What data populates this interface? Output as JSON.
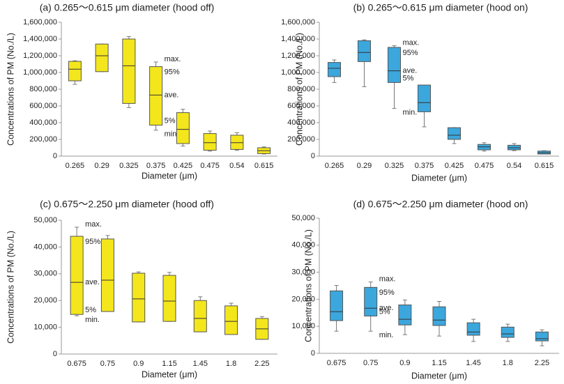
{
  "chart_data": [
    {
      "type": "box",
      "title": "(a) 0.265～0.615 μm diameter (hood off)",
      "x_label": "Diameter (μm)",
      "y_label": "Concentrations of PM (No./L)",
      "color": "#f4e61c",
      "categories": [
        "0.265",
        "0.29",
        "0.325",
        "0.375",
        "0.425",
        "0.475",
        "0.54",
        "0.615"
      ],
      "max": [
        1140000,
        1340000,
        1430000,
        1125000,
        560000,
        300000,
        280000,
        110000
      ],
      "p95": [
        1133000,
        1340000,
        1400000,
        1070000,
        520000,
        270000,
        250000,
        100000
      ],
      "mean": [
        1040000,
        1200000,
        1080000,
        730000,
        320000,
        160000,
        160000,
        65000
      ],
      "p5": [
        900000,
        1010000,
        630000,
        370000,
        150000,
        70000,
        80000,
        30000
      ],
      "min": [
        858000,
        1010000,
        580000,
        310000,
        120000,
        60000,
        70000,
        25000
      ],
      "annotations": [
        "max.",
        "95%",
        "ave.",
        "5%",
        "min."
      ],
      "ylim": [
        0,
        1600000
      ],
      "yticks": [
        0,
        {
          "value": 200000,
          "label": "200,000"
        },
        {
          "value": 400000,
          "label": "400,000"
        },
        {
          "value": 600000,
          "label": "600,000"
        },
        {
          "value": 800000,
          "label": "800,000"
        },
        {
          "value": 1000000,
          "label": "1,000,000"
        },
        {
          "value": 1200000,
          "label": "1,200,000"
        },
        {
          "value": 1400000,
          "label": "1,400,000"
        },
        {
          "value": 1600000,
          "label": "1,600,000"
        }
      ]
    },
    {
      "type": "box",
      "title": "(b) 0.265～0.615 μm diameter (hood on)",
      "x_label": "Diameter (μm)",
      "y_label": "Concentrations of PM (No./L)",
      "color": "#3ba7dd",
      "categories": [
        "0.265",
        "0.29",
        "0.325",
        "0.375",
        "0.425",
        "0.475",
        "0.54",
        "0.615"
      ],
      "max": [
        1150000,
        1390000,
        1320000,
        850000,
        340000,
        160000,
        150000,
        65000
      ],
      "p95": [
        1120000,
        1380000,
        1300000,
        850000,
        340000,
        140000,
        130000,
        60000
      ],
      "mean": [
        1050000,
        1240000,
        1020000,
        640000,
        250000,
        110000,
        100000,
        40000
      ],
      "p5": [
        950000,
        1130000,
        880000,
        530000,
        200000,
        75000,
        75000,
        25000
      ],
      "min": [
        880000,
        830000,
        570000,
        350000,
        150000,
        60000,
        65000,
        25000
      ],
      "annotations": [
        "max.",
        "95%",
        "ave.",
        "5%",
        "min."
      ],
      "ylim": [
        0,
        1600000
      ],
      "yticks": [
        0,
        {
          "value": 200000,
          "label": "200,000"
        },
        {
          "value": 400000,
          "label": "400,000"
        },
        {
          "value": 600000,
          "label": "600,000"
        },
        {
          "value": 800000,
          "label": "800,000"
        },
        {
          "value": 1000000,
          "label": "1,000,000"
        },
        {
          "value": 1200000,
          "label": "1,200,000"
        },
        {
          "value": 1400000,
          "label": "1,400,000"
        },
        {
          "value": 1600000,
          "label": "1,600,000"
        }
      ]
    },
    {
      "type": "box",
      "title": "(c) 0.675～2.250 μm diameter (hood off)",
      "x_label": "Diameter (μm)",
      "y_label": "Concentrations of PM (No./L)",
      "color": "#f4e61c",
      "categories": [
        "0.675",
        "0.75",
        "0.9",
        "1.15",
        "1.45",
        "1.8",
        "2.25"
      ],
      "max": [
        47400,
        44300,
        30700,
        30500,
        21400,
        19000,
        14000
      ],
      "p95": [
        44000,
        43000,
        30200,
        29400,
        20000,
        18000,
        13300
      ],
      "mean": [
        26800,
        27600,
        20600,
        19800,
        13300,
        12200,
        9400
      ],
      "p5": [
        14800,
        15900,
        12000,
        12200,
        8300,
        7300,
        5500
      ],
      "min": [
        14300,
        15900,
        12000,
        12200,
        8300,
        7300,
        5500
      ],
      "annotations": [
        "max.",
        "95%",
        "ave.",
        "5%",
        "min."
      ],
      "ylim": [
        0,
        50000
      ],
      "yticks": [
        0,
        {
          "value": 10000,
          "label": "10,000"
        },
        {
          "value": 20000,
          "label": "20,000"
        },
        {
          "value": 30000,
          "label": "30,000"
        },
        {
          "value": 40000,
          "label": "40,000"
        },
        {
          "value": 50000,
          "label": "50,000"
        }
      ]
    },
    {
      "type": "box",
      "title": "(d) 0.675～2.250 μm diameter (hood on)",
      "x_label": "Diameter (μm)",
      "y_label": "Concentrations of PM (No./L)",
      "color": "#3ba7dd",
      "categories": [
        "0.675",
        "0.75",
        "0.9",
        "1.15",
        "1.45",
        "1.8",
        "2.25"
      ],
      "max": [
        25100,
        26400,
        19700,
        19200,
        12600,
        10800,
        8700
      ],
      "p95": [
        23100,
        24400,
        17900,
        17200,
        11300,
        9700,
        7900
      ],
      "mean": [
        15400,
        16700,
        12600,
        12300,
        7900,
        7200,
        5400
      ],
      "p5": [
        12100,
        13800,
        10500,
        10300,
        6700,
        5900,
        4600
      ],
      "min": [
        8200,
        8200,
        6900,
        6400,
        4400,
        4400,
        2800
      ],
      "annotations": [
        "max.",
        "95%",
        "ave.",
        "5%",
        "min."
      ],
      "ylim": [
        0,
        50000
      ],
      "yticks": [
        0,
        {
          "value": 10000,
          "label": "10,000"
        },
        {
          "value": 20000,
          "label": "20,000"
        },
        {
          "value": 30000,
          "label": "30,000"
        },
        {
          "value": 40000,
          "label": "40,000"
        },
        {
          "value": 50000,
          "label": "50,000"
        }
      ]
    }
  ]
}
